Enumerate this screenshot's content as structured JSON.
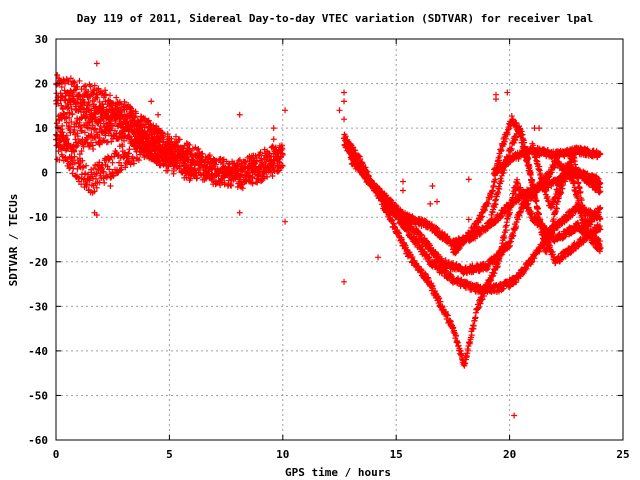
{
  "chart_data": {
    "type": "scatter",
    "title": "Day 119 of 2011, Sidereal Day-to-day VTEC variation (SDTVAR) for receiver lpal",
    "xlabel": "GPS time / hours",
    "ylabel": "SDTVAR / TECUs",
    "xlim": [
      0,
      25
    ],
    "ylim": [
      -60,
      30
    ],
    "xticks": [
      "0",
      "5",
      "10",
      "15",
      "20",
      "25"
    ],
    "yticks": [
      "30",
      "20",
      "10",
      "0",
      "-10",
      "-20",
      "-30",
      "-40",
      "-50",
      "-60"
    ],
    "grid": true,
    "marker": "+",
    "color": "#ff0000",
    "tracks": [
      {
        "x": [
          0,
          1,
          2,
          3,
          4,
          5,
          6,
          7,
          8,
          9,
          10
        ],
        "y": [
          19,
          18,
          16,
          13,
          9,
          6,
          3,
          1,
          -1,
          1,
          3
        ],
        "jitter": 3
      },
      {
        "x": [
          0,
          1,
          2,
          3,
          4,
          5,
          6,
          7,
          8,
          9,
          10
        ],
        "y": [
          14,
          13,
          12,
          10,
          7,
          4,
          2,
          0,
          0,
          2,
          4
        ],
        "jitter": 3
      },
      {
        "x": [
          0,
          0.5,
          1,
          1.5,
          2,
          3,
          4,
          5,
          6
        ],
        "y": [
          8,
          4,
          1,
          -2,
          0,
          4,
          6,
          3,
          1
        ],
        "jitter": 3
      },
      {
        "x": [
          0,
          1,
          2,
          3,
          4,
          5
        ],
        "y": [
          6,
          8,
          10,
          12,
          8,
          4
        ],
        "jitter": 4
      },
      {
        "x": [
          12.7,
          13.5,
          14.5,
          15.5,
          16.5,
          17.5,
          18,
          18.6,
          19.5,
          20.3,
          21,
          22,
          23,
          24
        ],
        "y": [
          8,
          2,
          -8,
          -18,
          -25,
          -35,
          -43,
          -30,
          -20,
          -2,
          -10,
          -15,
          -12,
          -16
        ],
        "jitter": 0.8
      },
      {
        "x": [
          12.7,
          13.5,
          14.5,
          15.5,
          16.5,
          17.5,
          18.5,
          19.5,
          20.3,
          21.2,
          22,
          23,
          24
        ],
        "y": [
          7,
          0,
          -6,
          -13,
          -20,
          -24,
          -26,
          -26,
          -24,
          -18,
          -12,
          -8,
          -10
        ],
        "jitter": 0.8
      },
      {
        "x": [
          13,
          13.8,
          15,
          16,
          17,
          18,
          19,
          20,
          20.5,
          21.5,
          22,
          23,
          24
        ],
        "y": [
          3,
          -2,
          -8,
          -14,
          -20,
          -22,
          -21,
          -16,
          -8,
          -2,
          2,
          0,
          -4
        ],
        "jitter": 0.8
      },
      {
        "x": [
          14.5,
          15.5,
          16.5,
          17.5,
          18.5,
          19.5,
          20.2,
          21,
          22,
          23,
          24
        ],
        "y": [
          -8,
          -10,
          -12,
          -16,
          -14,
          -10,
          -6,
          -4,
          -2,
          0,
          -2
        ],
        "jitter": 0.8
      },
      {
        "x": [
          17.5,
          18.5,
          19.2,
          19.6,
          20.1,
          20.6,
          21.3,
          22,
          23,
          24
        ],
        "y": [
          -18,
          -12,
          -5,
          5,
          12,
          8,
          -10,
          -20,
          -16,
          -12
        ],
        "jitter": 0.8
      },
      {
        "x": [
          19.3,
          20,
          21,
          22,
          23,
          24
        ],
        "y": [
          0,
          3,
          5,
          4,
          5,
          4
        ],
        "jitter": 0.8
      },
      {
        "x": [
          19.2,
          19.8,
          20.4,
          21,
          21.6,
          22.2,
          22.8,
          23.4,
          24
        ],
        "y": [
          -10,
          2,
          10,
          -2,
          -18,
          -5,
          4,
          -12,
          -8
        ],
        "jitter": 0.8
      },
      {
        "x": [
          21,
          21.8,
          22.6,
          23.4,
          24
        ],
        "y": [
          6,
          -8,
          2,
          -14,
          -17
        ],
        "jitter": 0.8
      }
    ],
    "outliers": [
      {
        "x": 1.8,
        "y": 24.5
      },
      {
        "x": 1.8,
        "y": -9.5
      },
      {
        "x": 1.7,
        "y": -9
      },
      {
        "x": 4.2,
        "y": 16
      },
      {
        "x": 4.5,
        "y": 13
      },
      {
        "x": 8.1,
        "y": 13
      },
      {
        "x": 8.1,
        "y": -9
      },
      {
        "x": 9.6,
        "y": 10
      },
      {
        "x": 9.6,
        "y": 7.5
      },
      {
        "x": 10.1,
        "y": 14
      },
      {
        "x": 10.1,
        "y": -11
      },
      {
        "x": 12.7,
        "y": 18
      },
      {
        "x": 12.7,
        "y": 16
      },
      {
        "x": 12.5,
        "y": 14
      },
      {
        "x": 12.7,
        "y": 12
      },
      {
        "x": 12.7,
        "y": -24.5
      },
      {
        "x": 14.2,
        "y": -19
      },
      {
        "x": 15.3,
        "y": -2
      },
      {
        "x": 15.3,
        "y": -4
      },
      {
        "x": 16.5,
        "y": -7
      },
      {
        "x": 16.8,
        "y": -6.5
      },
      {
        "x": 16.6,
        "y": -3
      },
      {
        "x": 18.2,
        "y": -1.5
      },
      {
        "x": 18.2,
        "y": -10.5
      },
      {
        "x": 19.4,
        "y": 17.5
      },
      {
        "x": 19.4,
        "y": 16.5
      },
      {
        "x": 19.9,
        "y": 18
      },
      {
        "x": 20.2,
        "y": -54.5
      },
      {
        "x": 21.1,
        "y": 10
      },
      {
        "x": 21.3,
        "y": 10
      },
      {
        "x": 2.4,
        "y": -3
      },
      {
        "x": 1.3,
        "y": -2.5
      }
    ]
  }
}
